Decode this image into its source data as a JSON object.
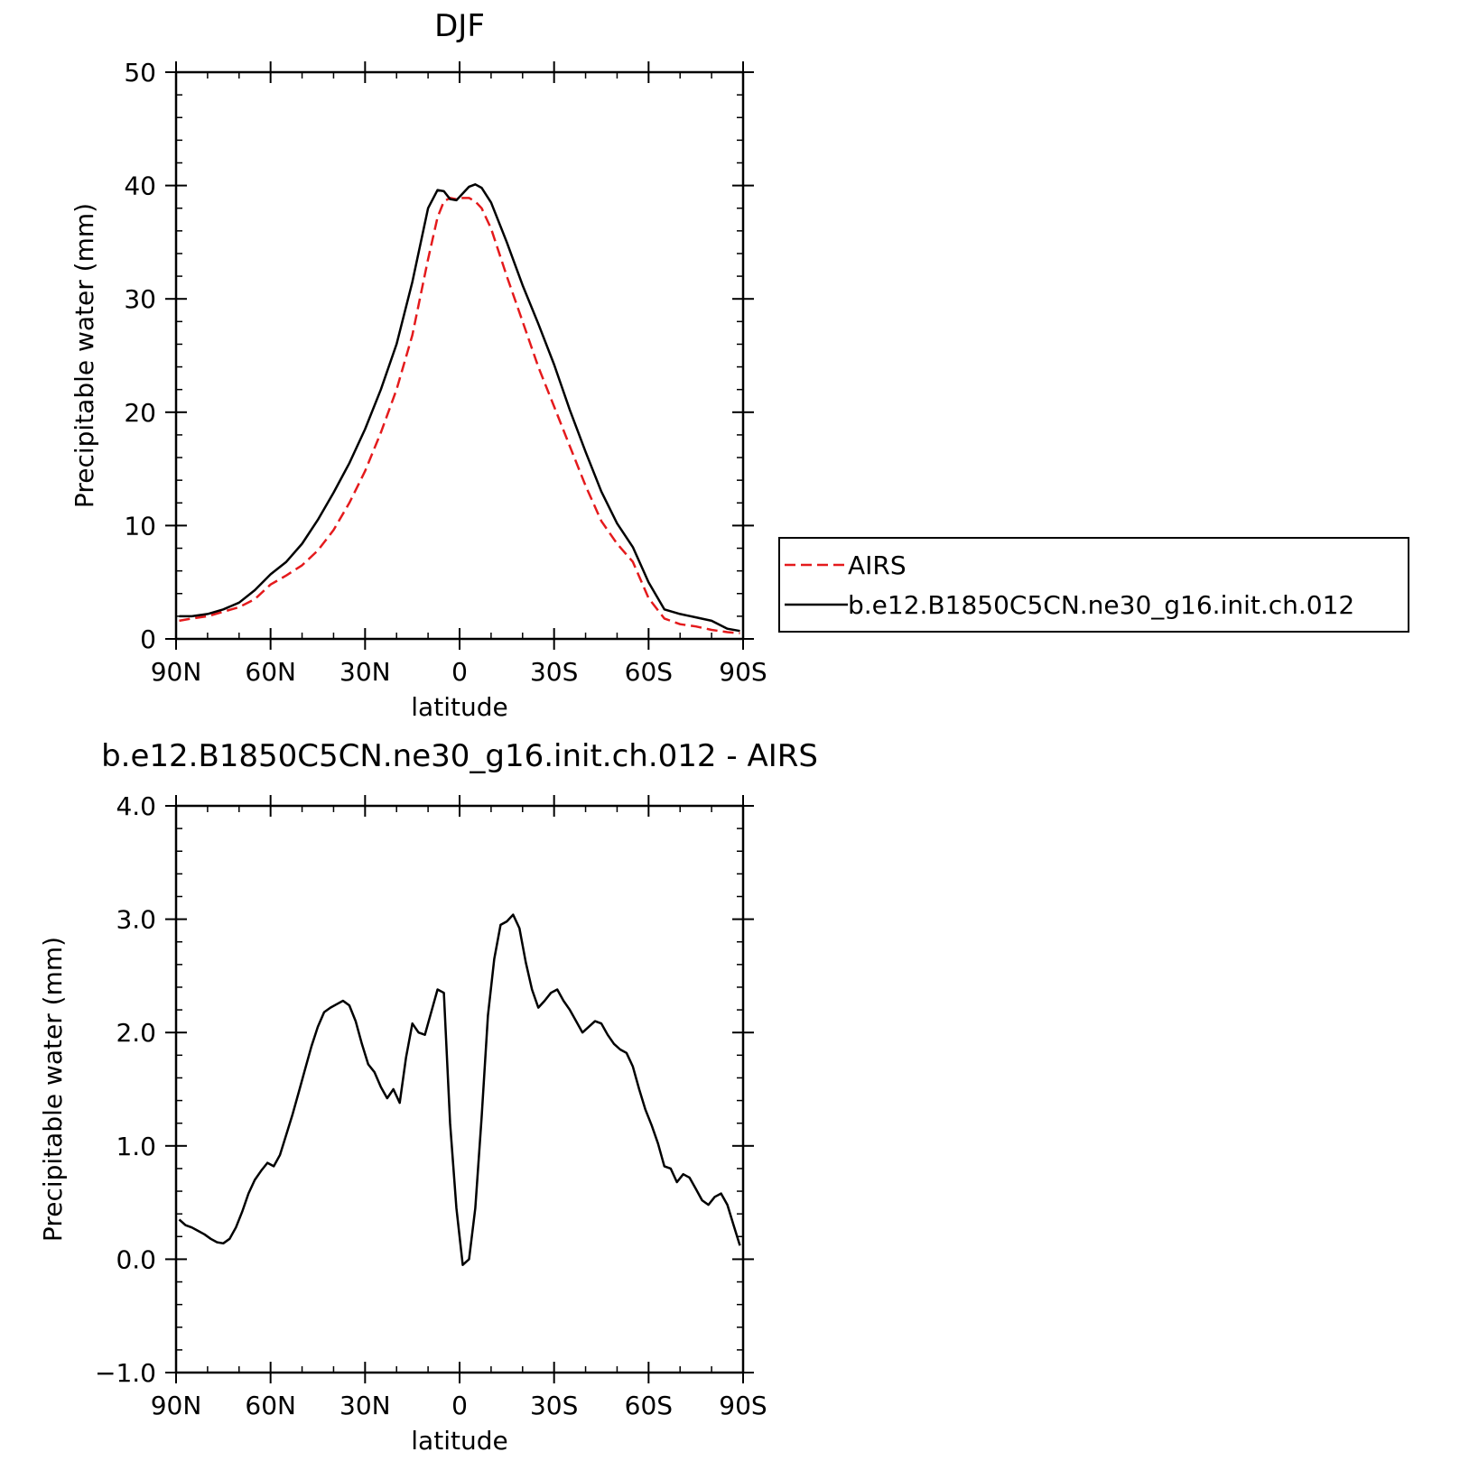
{
  "chart_data": [
    {
      "type": "line",
      "title": "DJF",
      "xlabel": "latitude",
      "ylabel": "Precipitable water (mm)",
      "xlim": [
        90,
        -90
      ],
      "ylim": [
        0,
        50
      ],
      "x_ticks": [
        {
          "value": 90,
          "label": "90N"
        },
        {
          "value": 60,
          "label": "60N"
        },
        {
          "value": 30,
          "label": "30N"
        },
        {
          "value": 0,
          "label": "0"
        },
        {
          "value": -30,
          "label": "30S"
        },
        {
          "value": -60,
          "label": "60S"
        },
        {
          "value": -90,
          "label": "90S"
        }
      ],
      "y_ticks": [
        {
          "value": 0,
          "label": "0"
        },
        {
          "value": 10,
          "label": "10"
        },
        {
          "value": 20,
          "label": "20"
        },
        {
          "value": 30,
          "label": "30"
        },
        {
          "value": 40,
          "label": "40"
        },
        {
          "value": 50,
          "label": "50"
        }
      ],
      "legend": {
        "placement": "right",
        "entries": [
          "AIRS",
          "b.e12.B1850C5CN.ne30_g16.init.ch.012"
        ]
      },
      "series": [
        {
          "name": "AIRS",
          "color": "#e41a1c",
          "dash": true,
          "x": [
            89,
            85,
            80,
            75,
            70,
            65,
            60,
            55,
            50,
            45,
            40,
            35,
            30,
            25,
            20,
            15,
            10,
            7,
            5,
            3,
            1,
            -1,
            -3,
            -5,
            -7,
            -10,
            -15,
            -20,
            -25,
            -30,
            -35,
            -40,
            -45,
            -50,
            -55,
            -60,
            -65,
            -70,
            -75,
            -80,
            -85,
            -89
          ],
          "y": [
            1.6,
            1.8,
            2.0,
            2.4,
            2.8,
            3.5,
            4.8,
            5.6,
            6.5,
            7.8,
            9.6,
            12.0,
            14.8,
            18.2,
            22.0,
            26.8,
            33.5,
            37.2,
            38.6,
            38.9,
            38.8,
            38.9,
            38.9,
            38.6,
            38.0,
            36.2,
            32.0,
            28.0,
            24.0,
            20.5,
            17.0,
            13.5,
            10.4,
            8.4,
            6.8,
            3.6,
            1.8,
            1.3,
            1.1,
            0.8,
            0.6,
            0.5
          ]
        },
        {
          "name": "b.e12.B1850C5CN.ne30_g16.init.ch.012",
          "color": "#000000",
          "dash": false,
          "x": [
            89,
            85,
            80,
            75,
            70,
            65,
            60,
            55,
            50,
            45,
            40,
            35,
            30,
            25,
            20,
            15,
            10,
            7,
            5,
            3,
            1,
            -1,
            -3,
            -5,
            -7,
            -10,
            -15,
            -20,
            -25,
            -30,
            -35,
            -40,
            -45,
            -50,
            -55,
            -60,
            -65,
            -70,
            -75,
            -80,
            -85,
            -89
          ],
          "y": [
            2.0,
            2.0,
            2.2,
            2.6,
            3.2,
            4.3,
            5.7,
            6.8,
            8.4,
            10.5,
            12.9,
            15.5,
            18.5,
            22.0,
            26.0,
            31.5,
            38.0,
            39.6,
            39.5,
            38.8,
            38.7,
            39.3,
            39.9,
            40.1,
            39.8,
            38.5,
            35.0,
            31.2,
            27.8,
            24.2,
            20.2,
            16.5,
            13.0,
            10.2,
            8.1,
            5.0,
            2.6,
            2.2,
            1.9,
            1.6,
            0.9,
            0.7
          ]
        }
      ]
    },
    {
      "type": "line",
      "title": "b.e12.B1850C5CN.ne30_g16.init.ch.012 - AIRS",
      "xlabel": "latitude",
      "ylabel": "Precipitable water (mm)",
      "xlim": [
        90,
        -90
      ],
      "ylim": [
        -1.0,
        4.0
      ],
      "x_ticks": [
        {
          "value": 90,
          "label": "90N"
        },
        {
          "value": 60,
          "label": "60N"
        },
        {
          "value": 30,
          "label": "30N"
        },
        {
          "value": 0,
          "label": "0"
        },
        {
          "value": -30,
          "label": "30S"
        },
        {
          "value": -60,
          "label": "60S"
        },
        {
          "value": -90,
          "label": "90S"
        }
      ],
      "y_ticks": [
        {
          "value": -1.0,
          "label": "−1.0"
        },
        {
          "value": 0.0,
          "label": "0.0"
        },
        {
          "value": 1.0,
          "label": "1.0"
        },
        {
          "value": 2.0,
          "label": "2.0"
        },
        {
          "value": 3.0,
          "label": "3.0"
        },
        {
          "value": 4.0,
          "label": "4.0"
        }
      ],
      "series": [
        {
          "color": "#000000",
          "dash": false,
          "x": [
            89,
            87,
            85,
            83,
            81,
            79,
            77,
            75,
            73,
            71,
            69,
            67,
            65,
            63,
            61,
            59,
            57,
            55,
            53,
            51,
            49,
            47,
            45,
            43,
            41,
            39,
            37,
            35,
            33,
            31,
            29,
            27,
            25,
            23,
            21,
            19,
            17,
            15,
            13,
            11,
            9,
            7,
            5,
            3,
            1,
            -1,
            -3,
            -5,
            -7,
            -9,
            -11,
            -13,
            -15,
            -17,
            -19,
            -21,
            -23,
            -25,
            -27,
            -29,
            -31,
            -33,
            -35,
            -37,
            -39,
            -41,
            -43,
            -45,
            -47,
            -49,
            -51,
            -53,
            -55,
            -57,
            -59,
            -61,
            -63,
            -65,
            -67,
            -69,
            -71,
            -73,
            -75,
            -77,
            -79,
            -81,
            -83,
            -85,
            -87,
            -89
          ],
          "y": [
            0.35,
            0.3,
            0.28,
            0.25,
            0.22,
            0.18,
            0.15,
            0.14,
            0.18,
            0.28,
            0.42,
            0.58,
            0.7,
            0.78,
            0.85,
            0.82,
            0.92,
            1.1,
            1.28,
            1.48,
            1.68,
            1.88,
            2.05,
            2.18,
            2.22,
            2.25,
            2.28,
            2.24,
            2.1,
            1.9,
            1.72,
            1.65,
            1.52,
            1.42,
            1.5,
            1.38,
            1.78,
            2.08,
            2.0,
            1.98,
            2.18,
            2.38,
            2.35,
            1.2,
            0.45,
            -0.05,
            0.0,
            0.45,
            1.25,
            2.15,
            2.65,
            2.95,
            2.98,
            3.04,
            2.92,
            2.62,
            2.38,
            2.22,
            2.28,
            2.35,
            2.38,
            2.28,
            2.2,
            2.1,
            2.0,
            2.05,
            2.1,
            2.08,
            1.98,
            1.9,
            1.85,
            1.82,
            1.7,
            1.5,
            1.32,
            1.18,
            1.02,
            0.82,
            0.8,
            0.68,
            0.75,
            0.72,
            0.62,
            0.52,
            0.48,
            0.55,
            0.58,
            0.48,
            0.3,
            0.12
          ]
        }
      ]
    }
  ]
}
